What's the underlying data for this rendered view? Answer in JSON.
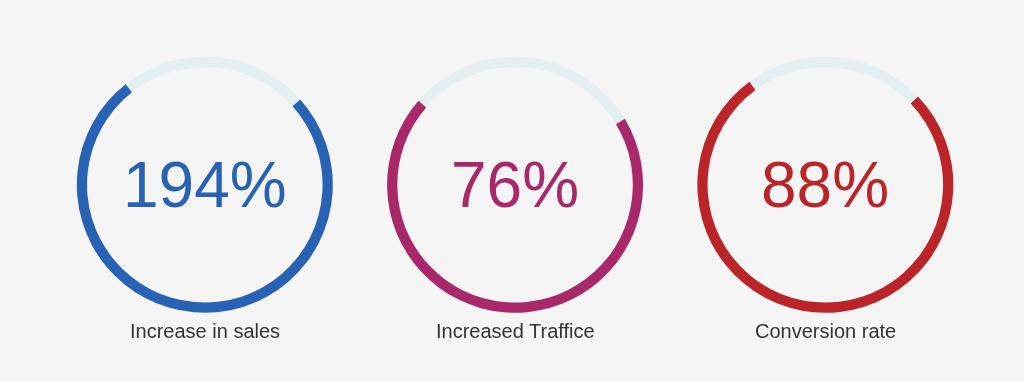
{
  "chart_data": [
    {
      "type": "donut",
      "title": "Increase in sales",
      "categories": [
        null,
        null
      ],
      "values": [
        76,
        24
      ],
      "colors": [
        "#2862b4",
        "#e4eff2"
      ],
      "annotations": [
        "194%"
      ]
    },
    {
      "type": "donut",
      "title": "Increased Traffice",
      "categories": [
        null,
        null
      ],
      "values": [
        70,
        30
      ],
      "colors": [
        "#a8286a",
        "#e4eff2"
      ],
      "annotations": [
        "76%"
      ]
    },
    {
      "type": "donut",
      "title": "Conversion rate",
      "categories": [
        null,
        null
      ],
      "values": [
        77,
        23
      ],
      "colors": [
        "#bb2428",
        "#e4eff2"
      ],
      "annotations": [
        "88%"
      ]
    }
  ]
}
